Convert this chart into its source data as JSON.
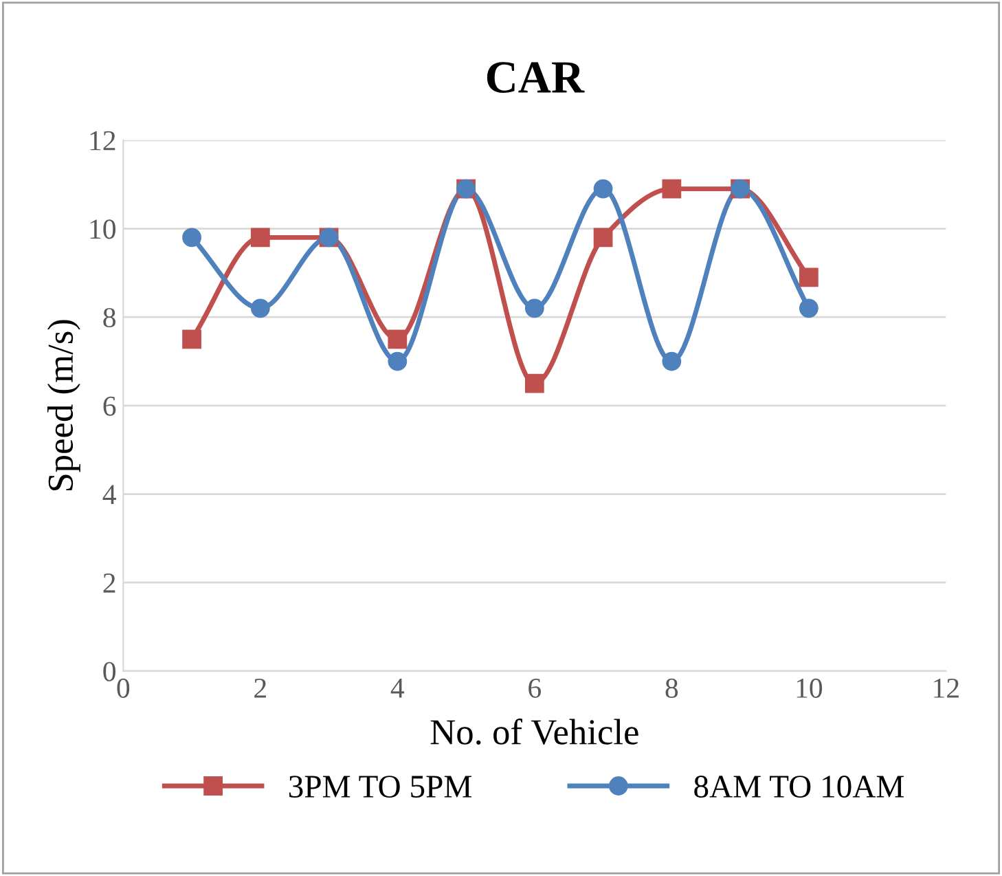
{
  "chart_data": {
    "type": "line",
    "title": "CAR",
    "xlabel": "No. of Vehicle",
    "ylabel": "Speed (m/s)",
    "x": [
      1,
      2,
      3,
      4,
      5,
      6,
      7,
      8,
      9,
      10
    ],
    "series": [
      {
        "name": "3PM TO 5PM",
        "color": "#c0504d",
        "marker": "square",
        "values": [
          7.5,
          9.8,
          9.8,
          7.5,
          10.9,
          6.5,
          9.8,
          10.9,
          10.9,
          8.9
        ]
      },
      {
        "name": "8AM TO 10AM",
        "color": "#4f81bd",
        "marker": "circle",
        "values": [
          9.8,
          8.2,
          9.8,
          7.0,
          10.9,
          8.2,
          10.9,
          7.0,
          10.9,
          8.2
        ]
      }
    ],
    "xlim": [
      0,
      12
    ],
    "xticks": [
      0,
      2,
      4,
      6,
      8,
      10,
      12
    ],
    "ylim": [
      0,
      12
    ],
    "yticks": [
      0,
      2,
      4,
      6,
      8,
      10,
      12
    ],
    "grid": "y",
    "legend": "bottom",
    "line_style": "solid"
  }
}
